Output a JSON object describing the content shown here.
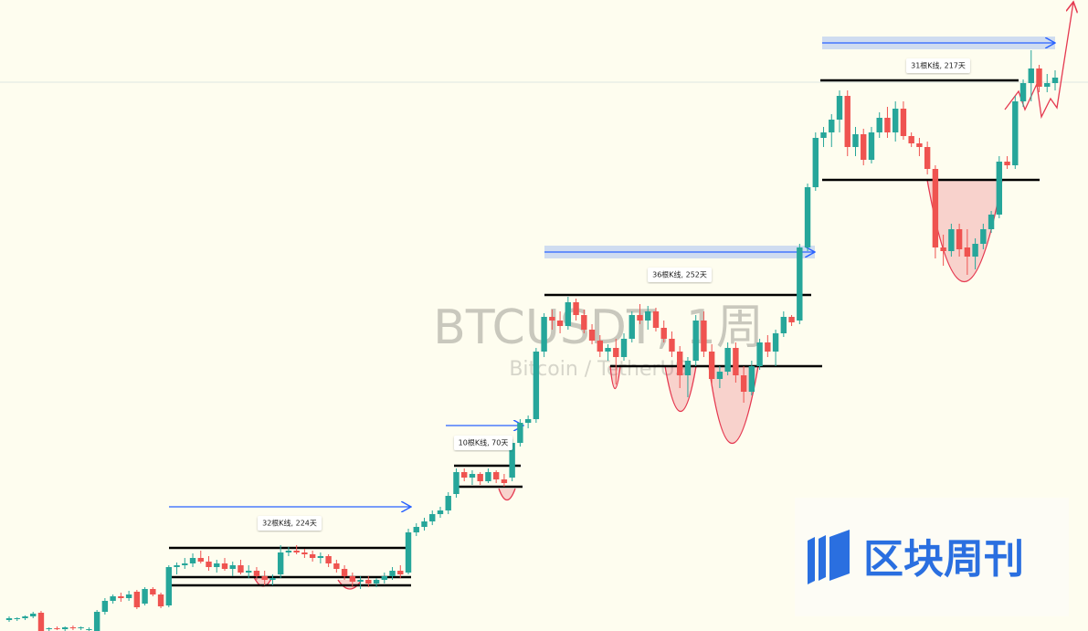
{
  "chart_data": {
    "type": "candlestick",
    "watermark": "BTCUSDT, 1周",
    "watermark_subtitle": "Bitcoin / TetherUS",
    "logo_text": "区块周刊",
    "annotations": [
      "32根K线, 224天",
      "10根K线, 70天",
      "36根K线, 252天",
      "31根K线, 217天"
    ],
    "up_color": "#26a69a",
    "down_color": "#ef5350",
    "ylim": [
      0,
      691
    ],
    "ohlc": [
      [
        12,
        16,
        10,
        14
      ],
      [
        13,
        15,
        11,
        14
      ],
      [
        14,
        17,
        12,
        16
      ],
      [
        16,
        21,
        14,
        19
      ],
      [
        20,
        22,
        0,
        0
      ],
      [
        2,
        4,
        0,
        3
      ],
      [
        3,
        5,
        1,
        2
      ],
      [
        2,
        5,
        0,
        4
      ],
      [
        4,
        6,
        1,
        3
      ],
      [
        3,
        5,
        1,
        4
      ],
      [
        2,
        4,
        0,
        2
      ],
      [
        0,
        23,
        0,
        21
      ],
      [
        21,
        36,
        18,
        33
      ],
      [
        33,
        40,
        30,
        38
      ],
      [
        38,
        42,
        32,
        36
      ],
      [
        36,
        44,
        33,
        40
      ],
      [
        43,
        45,
        24,
        26
      ],
      [
        30,
        48,
        28,
        46
      ],
      [
        46,
        48,
        38,
        40
      ],
      [
        40,
        42,
        25,
        27
      ],
      [
        28,
        72,
        26,
        70
      ],
      [
        70,
        75,
        62,
        72
      ],
      [
        72,
        80,
        68,
        74
      ],
      [
        74,
        85,
        70,
        80
      ],
      [
        80,
        88,
        74,
        76
      ],
      [
        76,
        82,
        66,
        70
      ],
      [
        70,
        78,
        64,
        74
      ],
      [
        74,
        80,
        66,
        68
      ],
      [
        68,
        76,
        60,
        72
      ],
      [
        72,
        78,
        62,
        64
      ],
      [
        64,
        72,
        58,
        66
      ],
      [
        66,
        70,
        56,
        60
      ],
      [
        60,
        66,
        50,
        56
      ],
      [
        56,
        62,
        50,
        58
      ],
      [
        62,
        94,
        58,
        86
      ],
      [
        86,
        92,
        82,
        88
      ],
      [
        88,
        94,
        84,
        86
      ],
      [
        86,
        90,
        80,
        84
      ],
      [
        84,
        88,
        76,
        80
      ],
      [
        80,
        86,
        74,
        82
      ],
      [
        82,
        84,
        70,
        74
      ],
      [
        74,
        78,
        64,
        68
      ],
      [
        68,
        72,
        56,
        60
      ],
      [
        60,
        64,
        48,
        54
      ],
      [
        54,
        60,
        46,
        56
      ],
      [
        56,
        60,
        48,
        52
      ],
      [
        52,
        58,
        48,
        56
      ],
      [
        56,
        64,
        52,
        60
      ],
      [
        60,
        70,
        56,
        66
      ],
      [
        66,
        72,
        58,
        62
      ],
      [
        64,
        112,
        62,
        108
      ],
      [
        108,
        118,
        104,
        114
      ],
      [
        114,
        124,
        110,
        120
      ],
      [
        120,
        132,
        116,
        128
      ],
      [
        128,
        136,
        124,
        132
      ],
      [
        132,
        152,
        128,
        148
      ],
      [
        150,
        178,
        146,
        174
      ],
      [
        174,
        178,
        164,
        168
      ],
      [
        168,
        176,
        160,
        172
      ],
      [
        172,
        174,
        160,
        164
      ],
      [
        164,
        178,
        162,
        174
      ],
      [
        174,
        176,
        162,
        166
      ],
      [
        166,
        172,
        158,
        162
      ],
      [
        168,
        210,
        164,
        206
      ],
      [
        206,
        232,
        202,
        228
      ],
      [
        228,
        236,
        222,
        232
      ],
      [
        232,
        310,
        228,
        306
      ],
      [
        306,
        348,
        300,
        344
      ],
      [
        344,
        352,
        330,
        340
      ],
      [
        340,
        350,
        326,
        334
      ],
      [
        334,
        366,
        330,
        360
      ],
      [
        360,
        364,
        340,
        346
      ],
      [
        346,
        352,
        326,
        330
      ],
      [
        330,
        336,
        314,
        318
      ],
      [
        318,
        324,
        300,
        306
      ],
      [
        306,
        314,
        296,
        310
      ],
      [
        310,
        320,
        270,
        300
      ],
      [
        300,
        326,
        296,
        320
      ],
      [
        320,
        350,
        316,
        346
      ],
      [
        346,
        358,
        336,
        340
      ],
      [
        340,
        356,
        330,
        350
      ],
      [
        350,
        354,
        328,
        332
      ],
      [
        332,
        340,
        316,
        320
      ],
      [
        320,
        328,
        300,
        306
      ],
      [
        306,
        312,
        266,
        280
      ],
      [
        280,
        300,
        256,
        296
      ],
      [
        296,
        346,
        290,
        340
      ],
      [
        340,
        350,
        300,
        306
      ],
      [
        306,
        314,
        270,
        276
      ],
      [
        276,
        290,
        266,
        284
      ],
      [
        284,
        316,
        280,
        310
      ],
      [
        310,
        316,
        272,
        280
      ],
      [
        280,
        290,
        250,
        262
      ],
      [
        262,
        296,
        258,
        290
      ],
      [
        290,
        320,
        286,
        316
      ],
      [
        316,
        324,
        300,
        306
      ],
      [
        306,
        330,
        290,
        326
      ],
      [
        326,
        350,
        322,
        344
      ],
      [
        344,
        346,
        334,
        338
      ],
      [
        340,
        424,
        336,
        420
      ],
      [
        420,
        490,
        416,
        486
      ],
      [
        486,
        546,
        482,
        540
      ],
      [
        540,
        552,
        530,
        546
      ],
      [
        546,
        566,
        530,
        560
      ],
      [
        560,
        592,
        546,
        586
      ],
      [
        586,
        592,
        520,
        530
      ],
      [
        530,
        552,
        520,
        544
      ],
      [
        544,
        550,
        510,
        516
      ],
      [
        516,
        552,
        512,
        546
      ],
      [
        546,
        568,
        540,
        562
      ],
      [
        562,
        574,
        540,
        546
      ],
      [
        546,
        580,
        536,
        572
      ],
      [
        572,
        580,
        538,
        542
      ],
      [
        542,
        546,
        530,
        534
      ],
      [
        534,
        540,
        520,
        530
      ],
      [
        530,
        536,
        500,
        506
      ],
      [
        506,
        510,
        408,
        420
      ],
      [
        420,
        434,
        400,
        416
      ],
      [
        416,
        446,
        410,
        440
      ],
      [
        440,
        446,
        410,
        418
      ],
      [
        420,
        440,
        390,
        410
      ],
      [
        410,
        430,
        396,
        424
      ],
      [
        424,
        446,
        418,
        440
      ],
      [
        440,
        460,
        436,
        456
      ],
      [
        456,
        520,
        452,
        514
      ],
      [
        514,
        520,
        506,
        510
      ],
      [
        510,
        586,
        506,
        580
      ],
      [
        580,
        604,
        574,
        600
      ],
      [
        600,
        636,
        580,
        616
      ],
      [
        616,
        620,
        590,
        596
      ],
      [
        596,
        610,
        590,
        600
      ],
      [
        600,
        614,
        592,
        606
      ]
    ]
  }
}
